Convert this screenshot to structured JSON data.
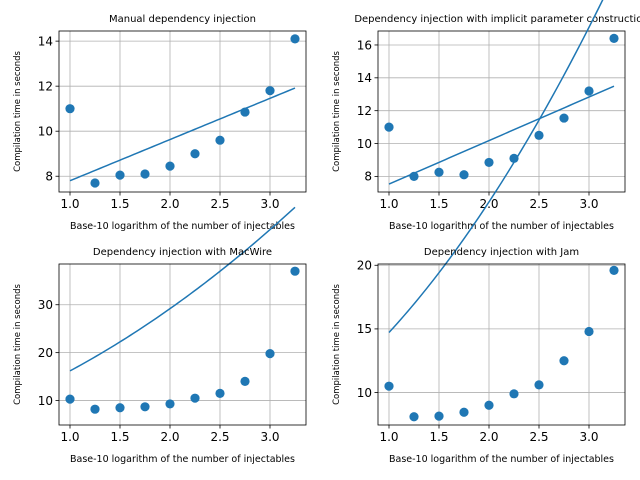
{
  "chart_data": [
    {
      "type": "scatter",
      "title": "Manual dependency injection",
      "xlabel": "Base-10 logarithm of the number of injectables",
      "ylabel": "Compilation time in seconds",
      "xlim": [
        0.89,
        3.36
      ],
      "ylim": [
        7.3,
        14.45
      ],
      "xticks": [
        1.0,
        1.5,
        2.0,
        2.5,
        3.0
      ],
      "yticks": [
        8,
        10,
        12,
        14
      ],
      "grid": true,
      "x": [
        1.0,
        1.25,
        1.5,
        1.75,
        2.0,
        2.25,
        2.5,
        2.75,
        3.0,
        3.25
      ],
      "y": [
        11.0,
        7.7,
        8.05,
        8.1,
        8.45,
        9.0,
        9.6,
        10.85,
        11.8,
        14.1
      ],
      "fit": {
        "kind": "linear",
        "coefficients": [
          5.97,
          1.83
        ]
      }
    },
    {
      "type": "scatter",
      "title": "Dependency injection with implicit parameter construction",
      "xlabel": "Base-10 logarithm of the number of injectables",
      "ylabel": "Compilation time in seconds",
      "xlim": [
        0.89,
        3.36
      ],
      "ylim": [
        7.05,
        16.85
      ],
      "xticks": [
        1.0,
        1.5,
        2.0,
        2.5,
        3.0
      ],
      "yticks": [
        8,
        10,
        12,
        14,
        16
      ],
      "grid": true,
      "x": [
        1.0,
        1.25,
        1.5,
        1.75,
        2.0,
        2.25,
        2.5,
        2.75,
        3.0,
        3.25
      ],
      "y": [
        11.0,
        8.0,
        8.25,
        8.1,
        8.85,
        9.1,
        10.5,
        11.55,
        13.2,
        16.4
      ],
      "fit": {
        "kind": "linear",
        "coefficients": [
          4.88,
          2.65
        ]
      }
    },
    {
      "type": "scatter",
      "title": "Dependency injection with MacWire",
      "xlabel": "Base-10 logarithm of the number of injectables",
      "ylabel": "Compilation time in seconds",
      "xlim": [
        0.89,
        3.36
      ],
      "ylim": [
        4.9,
        38.5
      ],
      "xticks": [
        1.0,
        1.5,
        2.0,
        2.5,
        3.0
      ],
      "yticks": [
        10,
        20,
        30
      ],
      "grid": true,
      "x": [
        1.0,
        1.25,
        1.5,
        1.75,
        2.0,
        2.25,
        2.5,
        2.75,
        3.0,
        3.25
      ],
      "y": [
        10.3,
        8.2,
        8.5,
        8.7,
        9.3,
        10.5,
        11.5,
        14.0,
        19.8,
        37.0
      ],
      "fit": {
        "kind": "quadratic",
        "coefficients": [
          6.7,
          7.74,
          1.75
        ]
      }
    },
    {
      "type": "scatter",
      "title": "Dependency injection with Jam",
      "xlabel": "Base-10 logarithm of the number of injectables",
      "ylabel": "Compilation time in seconds",
      "xlim": [
        0.89,
        3.36
      ],
      "ylim": [
        7.45,
        20.1
      ],
      "xticks": [
        1.0,
        1.5,
        2.0,
        2.5,
        3.0
      ],
      "yticks": [
        10,
        15,
        20
      ],
      "grid": true,
      "x": [
        1.0,
        1.25,
        1.5,
        1.75,
        2.0,
        2.25,
        2.5,
        2.75,
        3.0,
        3.25
      ],
      "y": [
        10.5,
        8.1,
        8.15,
        8.45,
        9.0,
        9.9,
        10.6,
        12.5,
        14.8,
        19.6
      ],
      "fit": {
        "kind": "quadratic",
        "coefficients": [
          7.92,
          5.07,
          1.73
        ]
      }
    }
  ]
}
